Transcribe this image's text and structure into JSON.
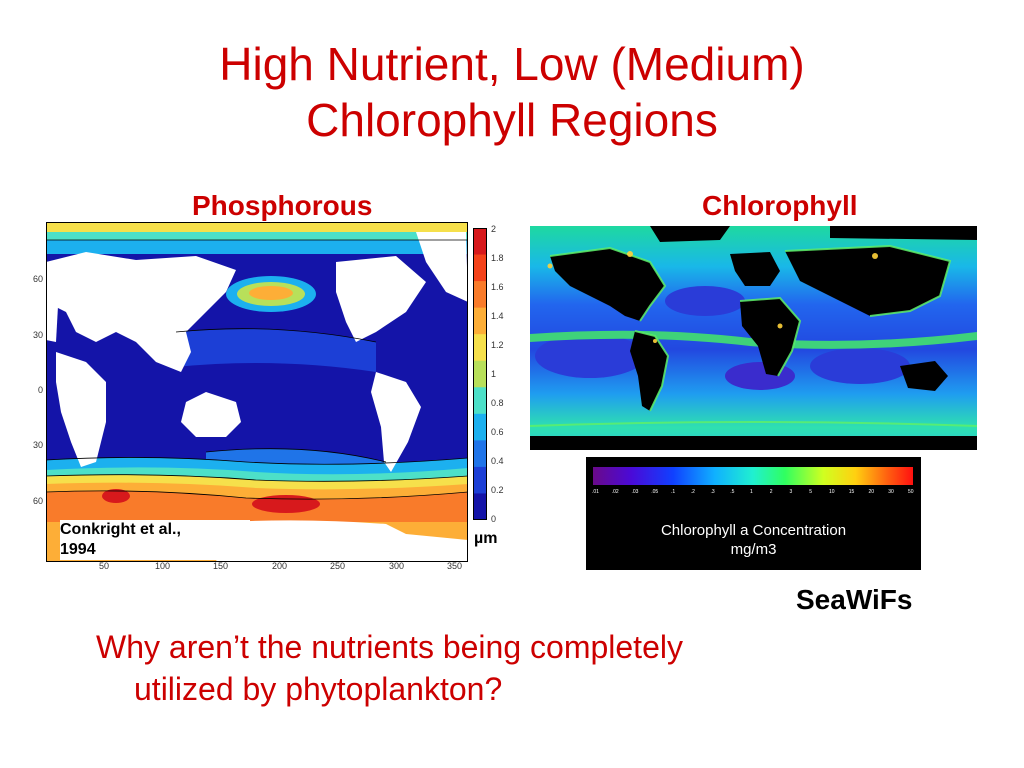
{
  "slide": {
    "title_line1": "High Nutrient, Low (Medium)",
    "title_line2": "Chlorophyll Regions",
    "question_line1": "Why aren’t the nutrients being completely",
    "question_line2": "utilized by phytoplankton?"
  },
  "left_panel": {
    "heading": "Phosphorous",
    "lat_ticks": [
      "60",
      "30",
      "0",
      "30",
      "60"
    ],
    "lon_ticks": [
      "50",
      "100",
      "150",
      "200",
      "250",
      "300",
      "350"
    ],
    "colorbar_ticks": [
      "2",
      "1.8",
      "1.6",
      "1.4",
      "1.2",
      "1",
      "0.8",
      "0.6",
      "0.4",
      "0.2",
      "0"
    ],
    "colorbar_colors": [
      "#d7191c",
      "#f4421a",
      "#f97b2a",
      "#fdae37",
      "#f6e04b",
      "#b8e05a",
      "#4de0c8",
      "#1cb0ef",
      "#1f74e8",
      "#1c3fd6",
      "#1414a8"
    ],
    "unit": "µm",
    "credit_line1": "Conkright et al.,",
    "credit_line2": "1994"
  },
  "right_panel": {
    "heading": "Chlorophyll",
    "legend_ticks": [
      ".01",
      ".02",
      ".03",
      ".05",
      ".1",
      ".2",
      ".3",
      ".5",
      "1",
      "2",
      "3",
      "5",
      "10",
      "15",
      "20",
      "30",
      "50"
    ],
    "legend_title_line1": "Chlorophyll a Concentration",
    "legend_title_line2": "mg/m3",
    "source": "SeaWiFs"
  }
}
